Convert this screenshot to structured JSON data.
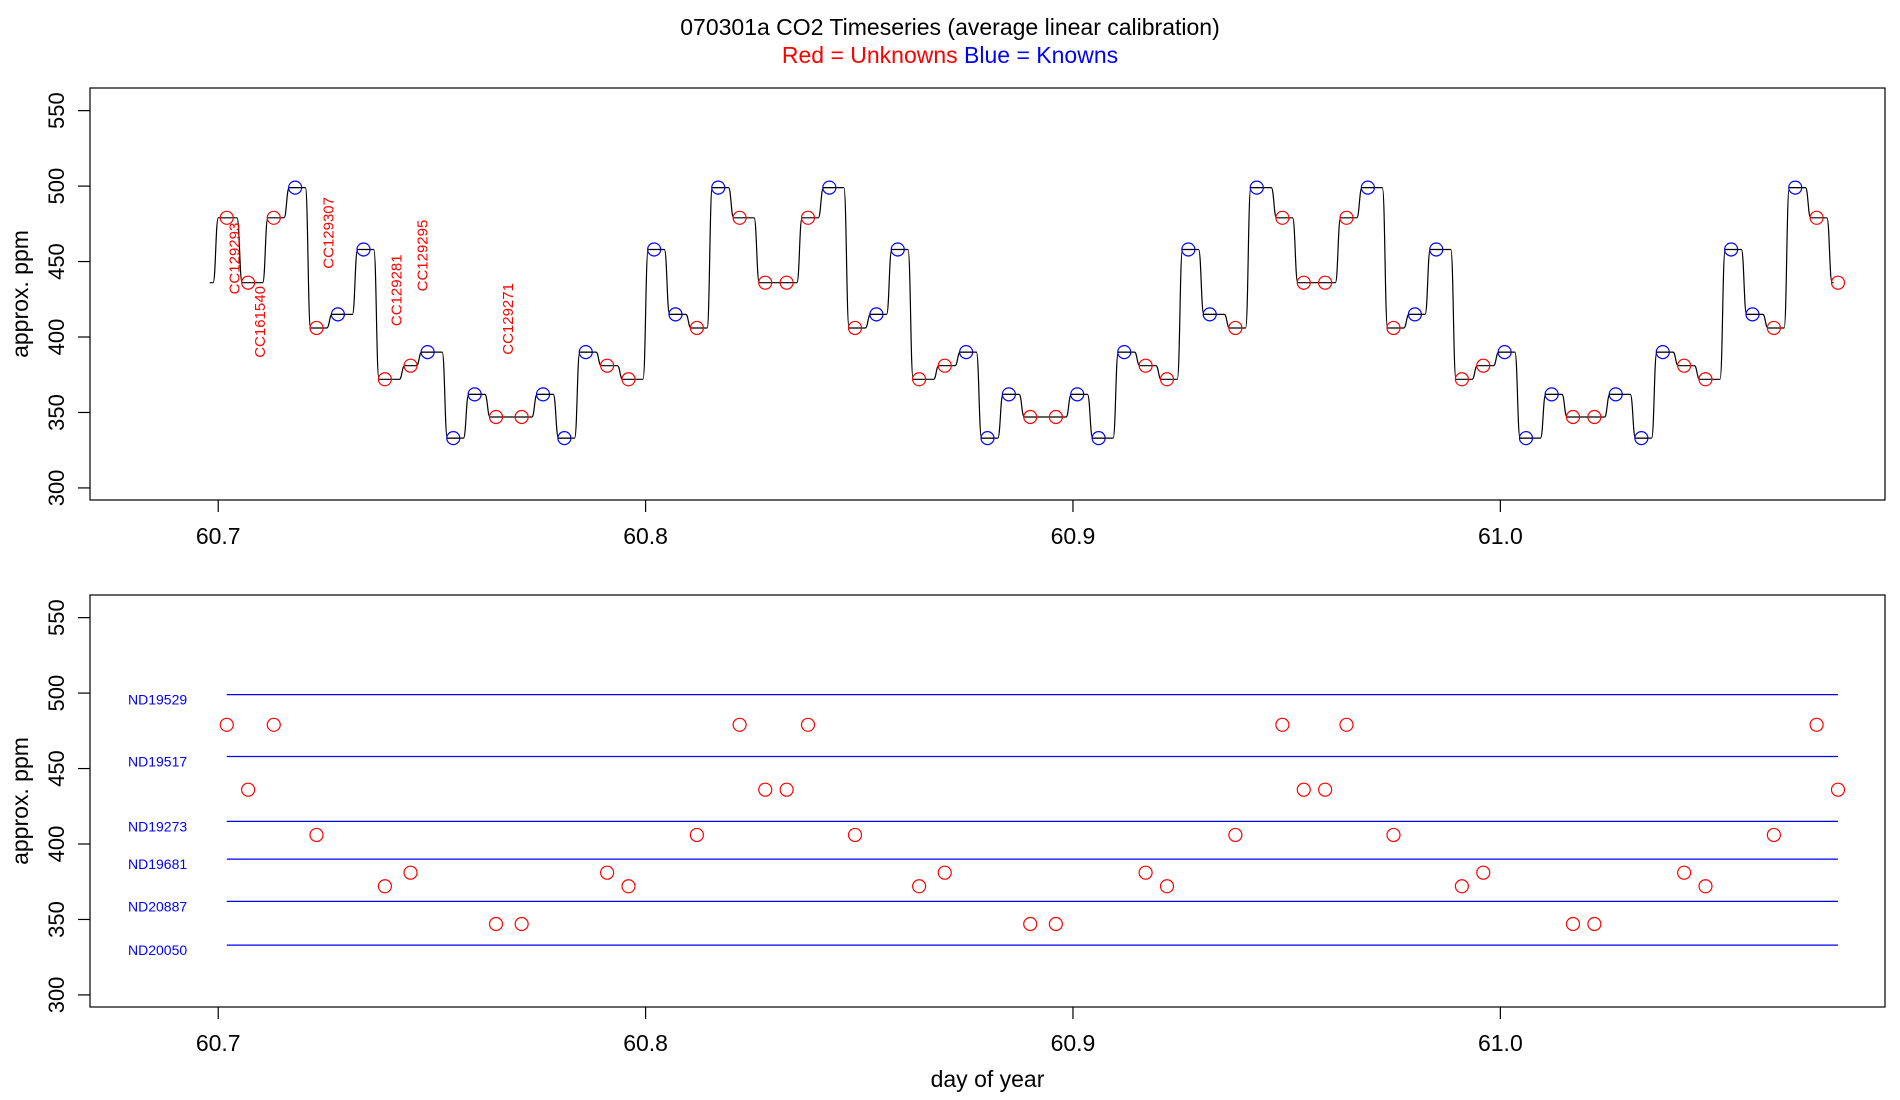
{
  "title": "070301a    CO2 Timeseries (average linear calibration)",
  "subtitle": {
    "red": "Red = Unknowns",
    "blue": "Blue = Knowns"
  },
  "colors": {
    "unknown": "#ff0000",
    "known": "#0000ff",
    "trace": "#000000",
    "std_line": "#0000ff"
  },
  "chart_data": [
    {
      "type": "line",
      "panel": "top",
      "xlabel": "",
      "ylabel": "approx. ppm",
      "xlim": [
        60.67,
        61.09
      ],
      "ylim": [
        292,
        565
      ],
      "xticks": [
        {
          "v": 60.7,
          "label": "60.7"
        },
        {
          "v": 60.8,
          "label": "60.8"
        },
        {
          "v": 60.9,
          "label": "60.9"
        },
        {
          "v": 61.0,
          "label": "61.0"
        }
      ],
      "yticks": [
        {
          "v": 300,
          "label": "300"
        },
        {
          "v": 350,
          "label": "350"
        },
        {
          "v": 400,
          "label": "400"
        },
        {
          "v": 450,
          "label": "450"
        },
        {
          "v": 500,
          "label": "500"
        },
        {
          "v": 550,
          "label": "550"
        }
      ],
      "trace_start": [
        60.698,
        436
      ],
      "trace_end": 61.078,
      "unknowns": [
        [
          60.702,
          479
        ],
        [
          60.707,
          436
        ],
        [
          60.713,
          479
        ],
        [
          60.723,
          406
        ],
        [
          60.739,
          372
        ],
        [
          60.745,
          381
        ],
        [
          60.765,
          347
        ],
        [
          60.771,
          347
        ],
        [
          60.791,
          381
        ],
        [
          60.796,
          372
        ],
        [
          60.812,
          406
        ],
        [
          60.822,
          479
        ],
        [
          60.828,
          436
        ],
        [
          60.833,
          436
        ],
        [
          60.838,
          479
        ],
        [
          60.849,
          406
        ],
        [
          60.864,
          372
        ],
        [
          60.87,
          381
        ],
        [
          60.89,
          347
        ],
        [
          60.896,
          347
        ],
        [
          60.917,
          381
        ],
        [
          60.922,
          372
        ],
        [
          60.938,
          406
        ],
        [
          60.949,
          479
        ],
        [
          60.954,
          436
        ],
        [
          60.959,
          436
        ],
        [
          60.964,
          479
        ],
        [
          60.975,
          406
        ],
        [
          60.991,
          372
        ],
        [
          60.996,
          381
        ],
        [
          61.017,
          347
        ],
        [
          61.022,
          347
        ],
        [
          61.043,
          381
        ],
        [
          61.048,
          372
        ],
        [
          61.064,
          406
        ],
        [
          61.074,
          479
        ],
        [
          61.079,
          436
        ]
      ],
      "knowns": [
        [
          60.718,
          499
        ],
        [
          60.728,
          415
        ],
        [
          60.734,
          458
        ],
        [
          60.749,
          390
        ],
        [
          60.755,
          333
        ],
        [
          60.76,
          362
        ],
        [
          60.776,
          362
        ],
        [
          60.781,
          333
        ],
        [
          60.786,
          390
        ],
        [
          60.802,
          458
        ],
        [
          60.807,
          415
        ],
        [
          60.817,
          499
        ],
        [
          60.843,
          499
        ],
        [
          60.854,
          415
        ],
        [
          60.859,
          458
        ],
        [
          60.875,
          390
        ],
        [
          60.88,
          333
        ],
        [
          60.885,
          362
        ],
        [
          60.901,
          362
        ],
        [
          60.906,
          333
        ],
        [
          60.912,
          390
        ],
        [
          60.927,
          458
        ],
        [
          60.932,
          415
        ],
        [
          60.943,
          499
        ],
        [
          60.969,
          499
        ],
        [
          60.98,
          415
        ],
        [
          60.985,
          458
        ],
        [
          61.001,
          390
        ],
        [
          61.006,
          333
        ],
        [
          61.012,
          362
        ],
        [
          61.027,
          362
        ],
        [
          61.033,
          333
        ],
        [
          61.038,
          390
        ],
        [
          61.054,
          458
        ],
        [
          61.059,
          415
        ],
        [
          61.069,
          499
        ]
      ],
      "annotations": [
        {
          "text": "CC129293",
          "x": 60.704,
          "y": 452
        },
        {
          "text": "CC161540",
          "x": 60.71,
          "y": 410
        },
        {
          "text": "CC129307",
          "x": 60.726,
          "y": 469
        },
        {
          "text": "CC129281",
          "x": 60.742,
          "y": 431
        },
        {
          "text": "CC129295",
          "x": 60.748,
          "y": 454
        },
        {
          "text": "CC129271",
          "x": 60.768,
          "y": 412
        }
      ]
    },
    {
      "type": "scatter",
      "panel": "bottom",
      "xlabel": "day of year",
      "ylabel": "approx. ppm",
      "xlim": [
        60.67,
        61.09
      ],
      "ylim": [
        292,
        565
      ],
      "xticks": [
        {
          "v": 60.7,
          "label": "60.7"
        },
        {
          "v": 60.8,
          "label": "60.8"
        },
        {
          "v": 60.9,
          "label": "60.9"
        },
        {
          "v": 61.0,
          "label": "61.0"
        }
      ],
      "yticks": [
        {
          "v": 300,
          "label": "300"
        },
        {
          "v": 350,
          "label": "350"
        },
        {
          "v": 400,
          "label": "400"
        },
        {
          "v": 450,
          "label": "450"
        },
        {
          "v": 500,
          "label": "500"
        },
        {
          "v": 550,
          "label": "550"
        }
      ],
      "line_range": [
        60.702,
        61.079
      ],
      "standards": [
        {
          "name": "ND19529",
          "value": 499
        },
        {
          "name": "ND19517",
          "value": 458
        },
        {
          "name": "ND19273",
          "value": 415
        },
        {
          "name": "ND19681",
          "value": 390
        },
        {
          "name": "ND20887",
          "value": 362
        },
        {
          "name": "ND20050",
          "value": 333
        }
      ],
      "points": [
        [
          60.702,
          479
        ],
        [
          60.707,
          436
        ],
        [
          60.713,
          479
        ],
        [
          60.723,
          406
        ],
        [
          60.739,
          372
        ],
        [
          60.745,
          381
        ],
        [
          60.765,
          347
        ],
        [
          60.771,
          347
        ],
        [
          60.791,
          381
        ],
        [
          60.796,
          372
        ],
        [
          60.812,
          406
        ],
        [
          60.822,
          479
        ],
        [
          60.828,
          436
        ],
        [
          60.833,
          436
        ],
        [
          60.838,
          479
        ],
        [
          60.849,
          406
        ],
        [
          60.864,
          372
        ],
        [
          60.87,
          381
        ],
        [
          60.89,
          347
        ],
        [
          60.896,
          347
        ],
        [
          60.917,
          381
        ],
        [
          60.922,
          372
        ],
        [
          60.938,
          406
        ],
        [
          60.949,
          479
        ],
        [
          60.954,
          436
        ],
        [
          60.959,
          436
        ],
        [
          60.964,
          479
        ],
        [
          60.975,
          406
        ],
        [
          60.991,
          372
        ],
        [
          60.996,
          381
        ],
        [
          61.017,
          347
        ],
        [
          61.022,
          347
        ],
        [
          61.043,
          381
        ],
        [
          61.048,
          372
        ],
        [
          61.064,
          406
        ],
        [
          61.074,
          479
        ],
        [
          61.079,
          436
        ]
      ]
    }
  ]
}
